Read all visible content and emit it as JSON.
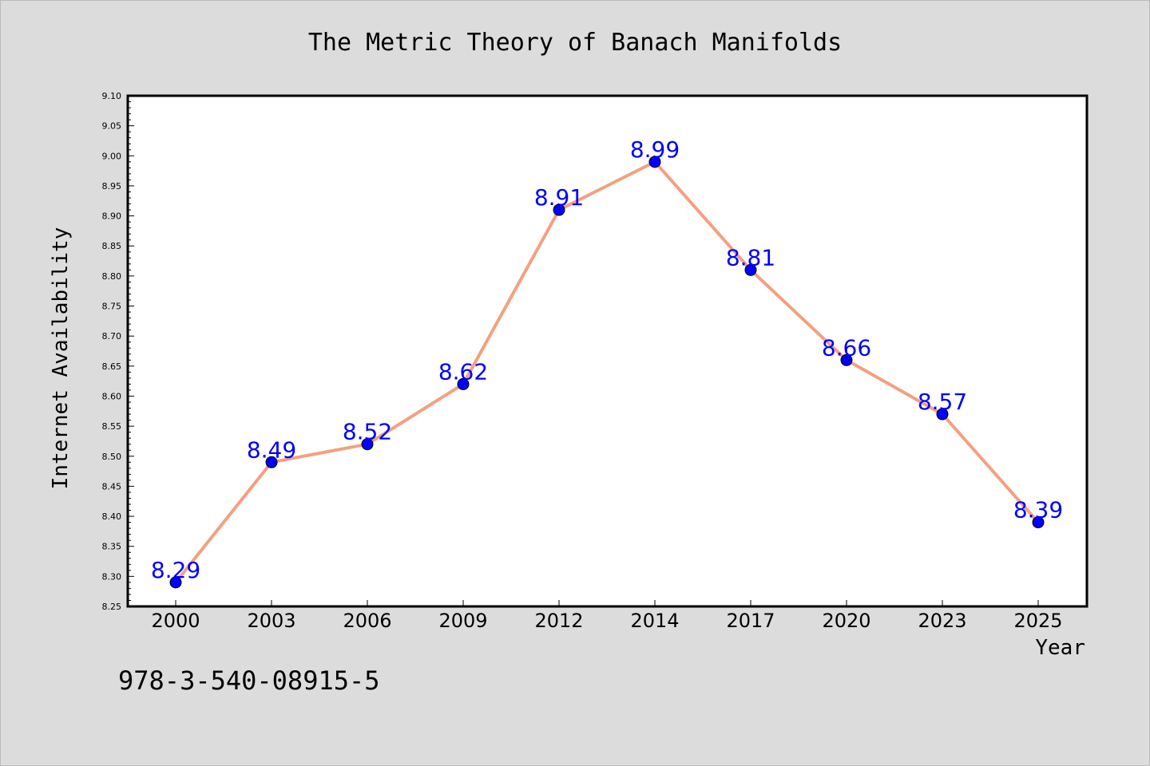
{
  "chart_data": {
    "type": "line",
    "title": "The Metric Theory of Banach Manifolds",
    "xlabel": "Year",
    "ylabel": "Internet Availability",
    "categories": [
      "2000",
      "2003",
      "2006",
      "2009",
      "2012",
      "2014",
      "2017",
      "2020",
      "2023",
      "2025"
    ],
    "series": [
      {
        "values": [
          8.29,
          8.49,
          8.52,
          8.62,
          8.91,
          8.99,
          8.81,
          8.66,
          8.57,
          8.39
        ],
        "data_labels": [
          "8.29",
          "8.49",
          "8.52",
          "8.62",
          "8.91",
          "8.99",
          "8.81",
          "8.66",
          "8.57",
          "8.39"
        ]
      }
    ],
    "ylim": [
      8.25,
      9.1
    ],
    "yticks": [
      "8.25",
      "8.30",
      "8.35",
      "8.40",
      "8.45",
      "8.50",
      "8.55",
      "8.60",
      "8.65",
      "8.70",
      "8.75",
      "8.80",
      "8.85",
      "8.90",
      "8.95",
      "9.00",
      "9.05",
      "9.10"
    ],
    "grid": false,
    "legend": "none",
    "colors": {
      "line": "#f4a080",
      "marker": "#0000ff",
      "data_label": "#0000ff",
      "plot_background": "#ffffff",
      "figure_background": "#dcdcdc"
    }
  },
  "footer": {
    "text": "978-3-540-08915-5"
  }
}
